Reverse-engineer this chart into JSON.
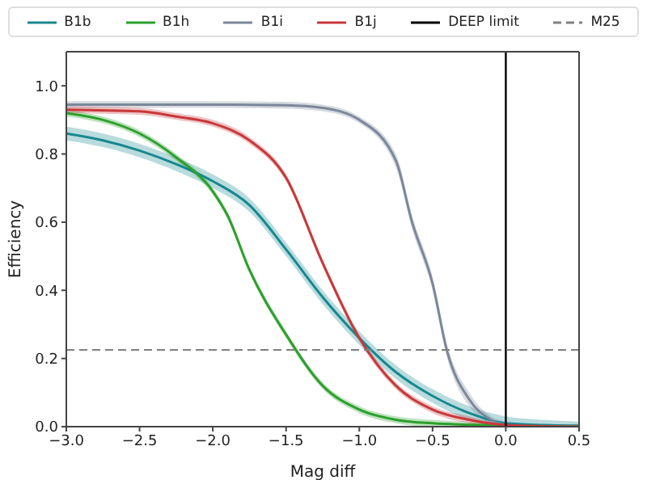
{
  "chart_data": {
    "type": "line",
    "xlabel": "Mag diff",
    "ylabel": "Efficiency",
    "xlim": [
      -3,
      0.5
    ],
    "ylim": [
      0,
      1.1
    ],
    "xticks": [
      {
        "value": -3,
        "label": "−3.0"
      },
      {
        "value": -2.5,
        "label": "−2.5"
      },
      {
        "value": -2,
        "label": "−2.0"
      },
      {
        "value": -1.5,
        "label": "−1.5"
      },
      {
        "value": -1,
        "label": "−1.0"
      },
      {
        "value": -0.5,
        "label": "−0.5"
      },
      {
        "value": 0,
        "label": "0.0"
      },
      {
        "value": 0.5,
        "label": "0.5"
      }
    ],
    "yticks": [
      {
        "value": 0,
        "label": "0.0"
      },
      {
        "value": 0.2,
        "label": "0.2"
      },
      {
        "value": 0.4,
        "label": "0.4"
      },
      {
        "value": 0.6,
        "label": "0.6"
      },
      {
        "value": 0.8,
        "label": "0.8"
      },
      {
        "value": 1,
        "label": "1.0"
      }
    ],
    "legend": "top",
    "marker": "none",
    "line_style": "solid",
    "series": [
      {
        "name": "B1b",
        "color": "#16888f",
        "x": [
          -3,
          -2.75,
          -2.5,
          -2.25,
          -2,
          -1.75,
          -1.5,
          -1.25,
          -1,
          -0.75,
          -0.5,
          -0.25,
          0,
          0.25,
          0.5
        ],
        "values": [
          0.86,
          0.84,
          0.81,
          0.77,
          0.72,
          0.65,
          0.52,
          0.38,
          0.26,
          0.16,
          0.09,
          0.04,
          0.01,
          0.005,
          0.003
        ],
        "lower": [
          0.84,
          0.82,
          0.79,
          0.75,
          0.7,
          0.63,
          0.5,
          0.36,
          0.24,
          0.14,
          0.07,
          0.02,
          0,
          0,
          0
        ],
        "upper": [
          0.88,
          0.86,
          0.83,
          0.79,
          0.74,
          0.67,
          0.54,
          0.4,
          0.28,
          0.18,
          0.11,
          0.06,
          0.03,
          0.02,
          0.015
        ]
      },
      {
        "name": "B1h",
        "color": "#2ca02c",
        "x": [
          -3,
          -2.75,
          -2.5,
          -2.25,
          -2,
          -1.9,
          -1.75,
          -1.5,
          -1.25,
          -1,
          -0.75,
          -0.5,
          0,
          0.5
        ],
        "values": [
          0.92,
          0.9,
          0.86,
          0.79,
          0.69,
          0.62,
          0.46,
          0.27,
          0.12,
          0.05,
          0.02,
          0.01,
          0.003,
          0
        ],
        "lower": [
          0.91,
          0.89,
          0.85,
          0.78,
          0.68,
          0.61,
          0.45,
          0.26,
          0.11,
          0.04,
          0.01,
          0,
          0,
          0
        ],
        "upper": [
          0.93,
          0.91,
          0.87,
          0.8,
          0.7,
          0.63,
          0.47,
          0.28,
          0.13,
          0.06,
          0.03,
          0.02,
          0.01,
          0.005
        ]
      },
      {
        "name": "B1i",
        "color": "#7b879a",
        "x": [
          -3,
          -2.5,
          -2,
          -1.5,
          -1.25,
          -1,
          -0.75,
          -0.64,
          -0.5,
          -0.4,
          -0.25,
          -0.1,
          0,
          0.25,
          0.5
        ],
        "values": [
          0.945,
          0.945,
          0.945,
          0.943,
          0.935,
          0.9,
          0.78,
          0.6,
          0.42,
          0.22,
          0.08,
          0.02,
          0.005,
          0,
          0
        ],
        "lower": [
          0.935,
          0.935,
          0.935,
          0.933,
          0.925,
          0.89,
          0.76,
          0.58,
          0.4,
          0.2,
          0.06,
          0.01,
          0,
          0,
          0
        ],
        "upper": [
          0.955,
          0.955,
          0.955,
          0.953,
          0.945,
          0.91,
          0.8,
          0.62,
          0.44,
          0.24,
          0.1,
          0.03,
          0.015,
          0.005,
          0.005
        ]
      },
      {
        "name": "B1j",
        "color": "#c8383a",
        "x": [
          -3,
          -2.5,
          -2.25,
          -2,
          -1.75,
          -1.5,
          -1.25,
          -1,
          -0.75,
          -0.5,
          -0.25,
          0,
          0.5
        ],
        "values": [
          0.93,
          0.925,
          0.91,
          0.89,
          0.84,
          0.73,
          0.48,
          0.26,
          0.12,
          0.05,
          0.02,
          0.005,
          0
        ],
        "lower": [
          0.92,
          0.915,
          0.9,
          0.88,
          0.83,
          0.72,
          0.47,
          0.25,
          0.11,
          0.04,
          0.01,
          0,
          0
        ],
        "upper": [
          0.94,
          0.935,
          0.92,
          0.9,
          0.85,
          0.74,
          0.49,
          0.27,
          0.13,
          0.06,
          0.03,
          0.01,
          0.005
        ]
      }
    ],
    "ref_lines": [
      {
        "axis": "x",
        "value": 0,
        "label": "DEEP limit",
        "color": "#000000",
        "line_style": "solid"
      },
      {
        "axis": "y",
        "value": 0.225,
        "label": "M25",
        "color": "#808080",
        "line_style": "dashed"
      }
    ]
  }
}
